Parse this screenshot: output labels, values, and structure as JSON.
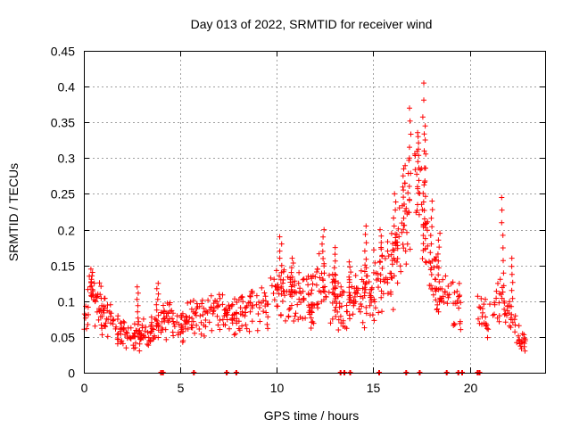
{
  "chart_data": {
    "type": "scatter",
    "title": "Day 013 of 2022, SRMTID for receiver wind",
    "xlabel": "GPS time / hours",
    "ylabel": "SRMTID / TECUs",
    "xlim": [
      0,
      23.9
    ],
    "ylim": [
      0,
      0.45
    ],
    "x_ticks": [
      0,
      5,
      10,
      15,
      20
    ],
    "x_tick_labels": [
      "0",
      "5",
      "10",
      "15",
      "20"
    ],
    "y_ticks": [
      0,
      0.05,
      0.1,
      0.15,
      0.2,
      0.25,
      0.3,
      0.35,
      0.4,
      0.45
    ],
    "y_tick_labels": [
      "0",
      "0.05",
      "0.1",
      "0.15",
      "0.2",
      "0.25",
      "0.3",
      "0.35",
      "0.4",
      "0.45"
    ],
    "grid": true,
    "marker": "+",
    "color": "#ff0000",
    "series": [
      {
        "name": "SRMTID",
        "trend": [
          [
            0.0,
            0.07
          ],
          [
            0.3,
            0.11
          ],
          [
            0.6,
            0.1
          ],
          [
            1.0,
            0.09
          ],
          [
            1.3,
            0.075
          ],
          [
            1.7,
            0.065
          ],
          [
            2.1,
            0.055
          ],
          [
            2.5,
            0.05
          ],
          [
            2.9,
            0.05
          ],
          [
            3.3,
            0.055
          ],
          [
            3.8,
            0.065
          ],
          [
            4.2,
            0.085
          ],
          [
            4.6,
            0.07
          ],
          [
            5.0,
            0.06
          ],
          [
            5.5,
            0.075
          ],
          [
            6.0,
            0.08
          ],
          [
            6.5,
            0.085
          ],
          [
            7.0,
            0.085
          ],
          [
            7.5,
            0.08
          ],
          [
            8.0,
            0.085
          ],
          [
            8.5,
            0.09
          ],
          [
            9.0,
            0.085
          ],
          [
            9.5,
            0.095
          ],
          [
            10.0,
            0.11
          ],
          [
            10.5,
            0.11
          ],
          [
            11.0,
            0.105
          ],
          [
            11.5,
            0.1
          ],
          [
            12.0,
            0.115
          ],
          [
            12.5,
            0.12
          ],
          [
            13.0,
            0.1
          ],
          [
            13.5,
            0.095
          ],
          [
            14.0,
            0.1
          ],
          [
            14.5,
            0.11
          ],
          [
            15.0,
            0.12
          ],
          [
            15.5,
            0.13
          ],
          [
            16.0,
            0.15
          ],
          [
            16.5,
            0.2
          ],
          [
            17.0,
            0.23
          ],
          [
            17.4,
            0.27
          ],
          [
            17.8,
            0.16
          ],
          [
            18.3,
            0.12
          ],
          [
            19.5,
            0.09
          ],
          [
            20.4,
            0.09
          ],
          [
            21.0,
            0.075
          ],
          [
            21.5,
            0.12
          ],
          [
            22.0,
            0.08
          ],
          [
            22.6,
            0.05
          ],
          [
            22.9,
            0.04
          ]
        ],
        "spikes": [
          [
            0.4,
            0.145
          ],
          [
            2.8,
            0.12
          ],
          [
            3.8,
            0.125
          ],
          [
            10.2,
            0.19
          ],
          [
            10.8,
            0.16
          ],
          [
            12.4,
            0.2
          ],
          [
            13.0,
            0.175
          ],
          [
            13.8,
            0.155
          ],
          [
            14.6,
            0.205
          ],
          [
            15.4,
            0.2
          ],
          [
            16.1,
            0.25
          ],
          [
            16.6,
            0.285
          ],
          [
            16.9,
            0.37
          ],
          [
            17.3,
            0.33
          ],
          [
            17.6,
            0.405
          ],
          [
            17.7,
            0.345
          ],
          [
            18.0,
            0.24
          ],
          [
            18.4,
            0.195
          ],
          [
            21.7,
            0.245
          ],
          [
            22.2,
            0.16
          ]
        ],
        "gaps": [
          [
            19.6,
            20.4
          ],
          [
            23.0,
            23.9
          ]
        ],
        "zero_marks": [
          4.0,
          4.1,
          5.7,
          7.4,
          7.9,
          13.3,
          13.5,
          13.8,
          15.3,
          16.7,
          17.4,
          18.8,
          19.4,
          19.6,
          20.4,
          20.5
        ]
      }
    ]
  }
}
